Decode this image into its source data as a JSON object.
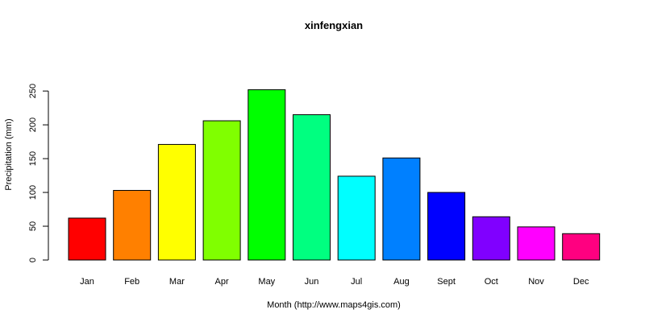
{
  "chart_data": {
    "type": "bar",
    "title": "xinfengxian",
    "xlabel": "Month (http://www.maps4gis.com)",
    "ylabel": "Precipitation (mm)",
    "categories": [
      "Jan",
      "Feb",
      "Mar",
      "Apr",
      "May",
      "Jun",
      "Jul",
      "Aug",
      "Sept",
      "Oct",
      "Nov",
      "Dec"
    ],
    "values": [
      62,
      103,
      171,
      206,
      252,
      215,
      124,
      151,
      100,
      64,
      49,
      39
    ],
    "colors": [
      "#FF0000",
      "#FF8000",
      "#FFFF00",
      "#80FF00",
      "#00FF00",
      "#00FF80",
      "#00FFFF",
      "#0080FF",
      "#0000FF",
      "#8000FF",
      "#FF00FF",
      "#FF0080"
    ],
    "yticks": [
      0,
      50,
      100,
      150,
      200,
      250
    ],
    "ylim": [
      0,
      250
    ],
    "grid": false
  }
}
